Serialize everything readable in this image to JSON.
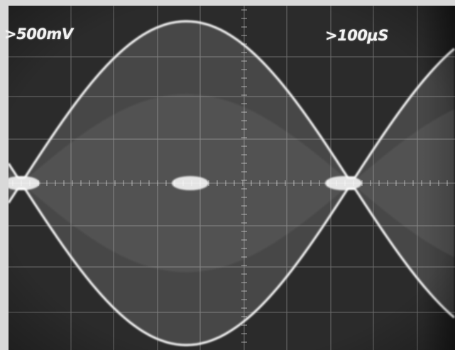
{
  "scope": {
    "volts_per_div": ">500mV",
    "time_per_div": ">100μS"
  },
  "colors": {
    "screen": "#2b2b2b",
    "trace": "#f4f4f4",
    "graticule": "#bdbdbd",
    "border": "#d9d9d9"
  },
  "signal": {
    "description_type": "amplitude-modulated carrier (envelope display)"
  }
}
